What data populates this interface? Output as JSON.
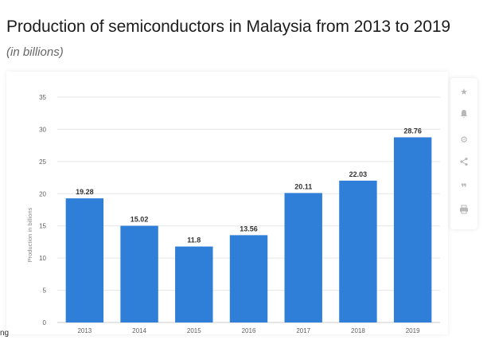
{
  "page": {
    "title": "Production of semiconductors in Malaysia from 2013 to 2019",
    "subtitle": "(in billions)",
    "edge_text": "ng"
  },
  "toolbar": {
    "icons": [
      "star-icon",
      "bell-icon",
      "gear-icon",
      "share-icon",
      "quote-icon",
      "print-icon"
    ]
  },
  "colors": {
    "bar": "#2f7ed8",
    "grid": "#e6e6e6",
    "axis_text": "#606060",
    "label_text": "#333333"
  },
  "chart_data": {
    "type": "bar",
    "categories": [
      "2013",
      "2014",
      "2015",
      "2016",
      "2017",
      "2018",
      "2019"
    ],
    "values": [
      19.28,
      15.02,
      11.8,
      13.56,
      20.11,
      22.03,
      28.76
    ],
    "value_labels": [
      "19.28",
      "15.02",
      "11.8",
      "13.56",
      "20.11",
      "22.03",
      "28.76"
    ],
    "title": "Production of semiconductors in Malaysia from 2013 to 2019",
    "subtitle": "(in billions)",
    "xlabel": "",
    "ylabel": "Production in billions",
    "ylim": [
      0,
      35
    ],
    "yticks": [
      0,
      5,
      10,
      15,
      20,
      25,
      30,
      35
    ],
    "grid": true,
    "legend": "none"
  }
}
